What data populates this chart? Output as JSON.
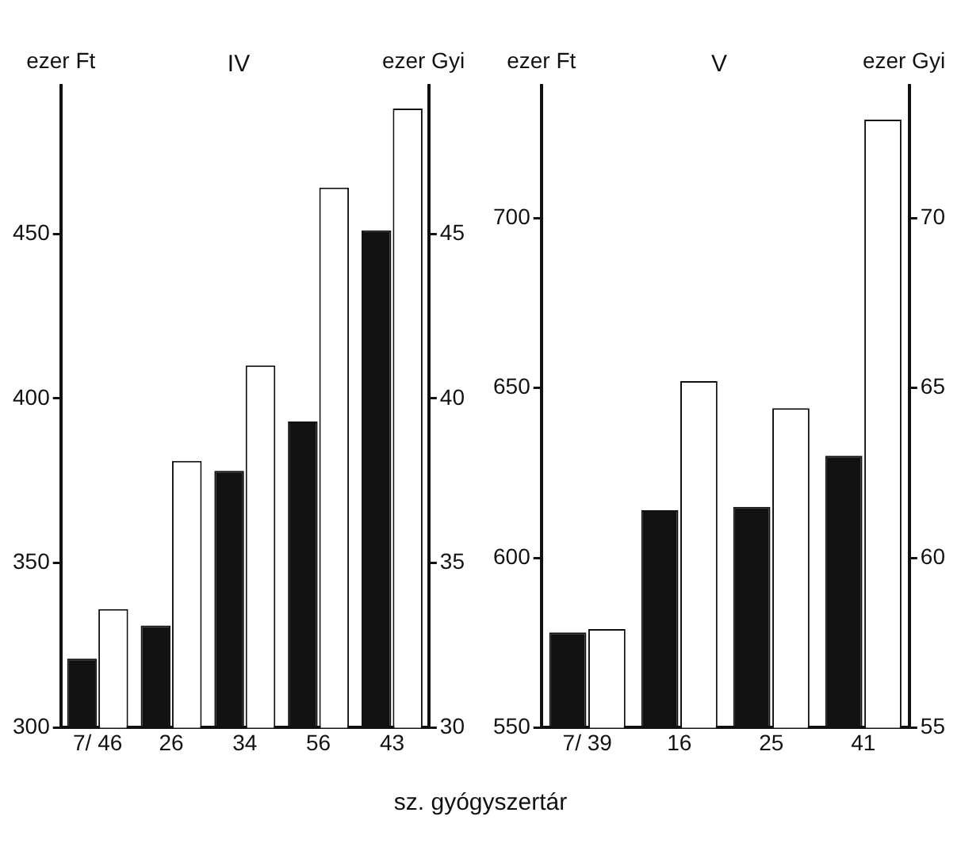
{
  "chart_data": [
    {
      "type": "bar",
      "title": "IV",
      "ylabel": "ezer Ft",
      "y2label": "ezer Gyi",
      "xlabel": "sz. gyógyszertár",
      "categories": [
        "7/ 46",
        "26",
        "34",
        "56",
        "43"
      ],
      "series": [
        {
          "color": "#111111",
          "values": [
            321,
            331,
            378,
            393,
            451
          ]
        },
        {
          "color": "#ffffff",
          "axis": "y2",
          "values": [
            33.6,
            38.1,
            41.0,
            46.4,
            48.8
          ]
        }
      ],
      "ylim": [
        300,
        495
      ],
      "yticks": [
        300,
        350,
        400,
        450
      ],
      "y2lim": [
        30,
        49.5
      ],
      "y2ticks": [
        30,
        35,
        40,
        45
      ],
      "grid": false,
      "legend": false
    },
    {
      "type": "bar",
      "title": "V",
      "ylabel": "ezer Ft",
      "y2label": "ezer Gyi",
      "categories": [
        "7/ 39",
        "16",
        "25",
        "41"
      ],
      "series": [
        {
          "color": "#111111",
          "values": [
            578,
            614,
            615,
            630
          ]
        },
        {
          "color": "#ffffff",
          "axis": "y2",
          "values": [
            57.9,
            65.2,
            64.4,
            72.9
          ]
        }
      ],
      "ylim": [
        550,
        739
      ],
      "yticks": [
        550,
        600,
        650,
        700
      ],
      "y2lim": [
        55,
        73.9
      ],
      "y2ticks": [
        55,
        60,
        65,
        70
      ],
      "grid": false,
      "legend": false
    }
  ]
}
